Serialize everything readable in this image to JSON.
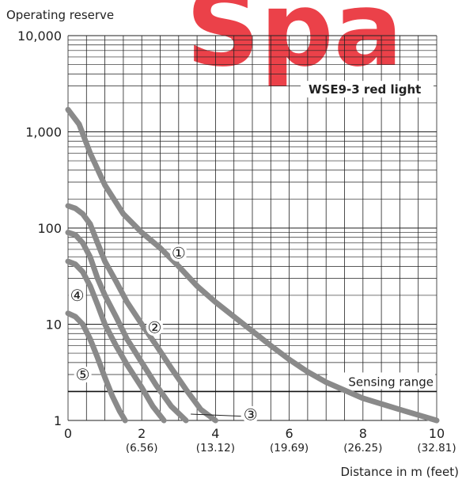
{
  "watermark": "Spa",
  "chart_data": {
    "type": "line",
    "title": "",
    "ylabel": "Operating reserve",
    "xlabel": "Distance in m (feet)",
    "yscale": "log",
    "ylim": [
      1,
      10000
    ],
    "xlim": [
      0,
      10
    ],
    "grid": true,
    "y_ticks": [
      {
        "value": 1,
        "label": "1"
      },
      {
        "value": 10,
        "label": "10"
      },
      {
        "value": 100,
        "label": "100"
      },
      {
        "value": 1000,
        "label": "1,000"
      },
      {
        "value": 10000,
        "label": "10,000"
      }
    ],
    "x_ticks": [
      {
        "value": 0,
        "label": "0",
        "sublabel": ""
      },
      {
        "value": 2,
        "label": "2",
        "sublabel": "(6.56)"
      },
      {
        "value": 4,
        "label": "4",
        "sublabel": "(13.12)"
      },
      {
        "value": 6,
        "label": "6",
        "sublabel": "(19.69)"
      },
      {
        "value": 8,
        "label": "8",
        "sublabel": "(26.25)"
      },
      {
        "value": 10,
        "label": "10",
        "sublabel": "(32.81)"
      }
    ],
    "legend_box": "WSE9-3 red light",
    "sensing_range": {
      "label": "Sensing range",
      "y": 2
    },
    "series": [
      {
        "marker": "①",
        "color": "#8a8a8a",
        "label_at": [
          3.0,
          55
        ],
        "x": [
          0,
          0.3,
          0.6,
          1.0,
          1.5,
          2.0,
          2.5,
          3.0,
          3.5,
          4.0,
          4.5,
          5.0,
          5.5,
          6.0,
          6.5,
          7.0,
          8.0,
          9.0,
          10.0
        ],
        "y": [
          1700,
          1200,
          600,
          280,
          140,
          90,
          62,
          40,
          25,
          17,
          12,
          8.5,
          6,
          4.3,
          3.2,
          2.5,
          1.7,
          1.3,
          1.0
        ]
      },
      {
        "marker": "②",
        "color": "#8a8a8a",
        "label_at": [
          2.35,
          9.3
        ],
        "x": [
          0,
          0.2,
          0.4,
          0.6,
          0.8,
          1.0,
          1.3,
          1.6,
          2.0,
          2.4,
          2.8,
          3.2,
          3.6,
          4.0
        ],
        "y": [
          170,
          160,
          140,
          110,
          70,
          45,
          28,
          17,
          10,
          6,
          3.5,
          2.1,
          1.3,
          1.0
        ]
      },
      {
        "marker": "③",
        "color": "#8a8a8a",
        "label_at": [
          4.95,
          1.15
        ],
        "x": [
          0,
          0.2,
          0.4,
          0.6,
          0.8,
          1.0,
          1.3,
          1.6,
          2.0,
          2.4,
          2.8,
          3.2
        ],
        "y": [
          90,
          85,
          70,
          50,
          30,
          20,
          12,
          7,
          4,
          2.3,
          1.4,
          1.0
        ]
      },
      {
        "marker": "④",
        "color": "#8a8a8a",
        "label_at": [
          0.25,
          20
        ],
        "x": [
          0,
          0.2,
          0.4,
          0.6,
          0.8,
          1.0,
          1.3,
          1.6,
          2.0,
          2.3,
          2.6
        ],
        "y": [
          45,
          42,
          35,
          25,
          16,
          10,
          6,
          3.8,
          2.2,
          1.4,
          1.0
        ]
      },
      {
        "marker": "⑤",
        "color": "#8a8a8a",
        "label_at": [
          0.4,
          3.0
        ],
        "x": [
          0,
          0.2,
          0.4,
          0.6,
          0.8,
          1.0,
          1.2,
          1.4,
          1.55
        ],
        "y": [
          13,
          12,
          10,
          7,
          4.5,
          2.8,
          1.8,
          1.25,
          1.0
        ]
      }
    ]
  }
}
